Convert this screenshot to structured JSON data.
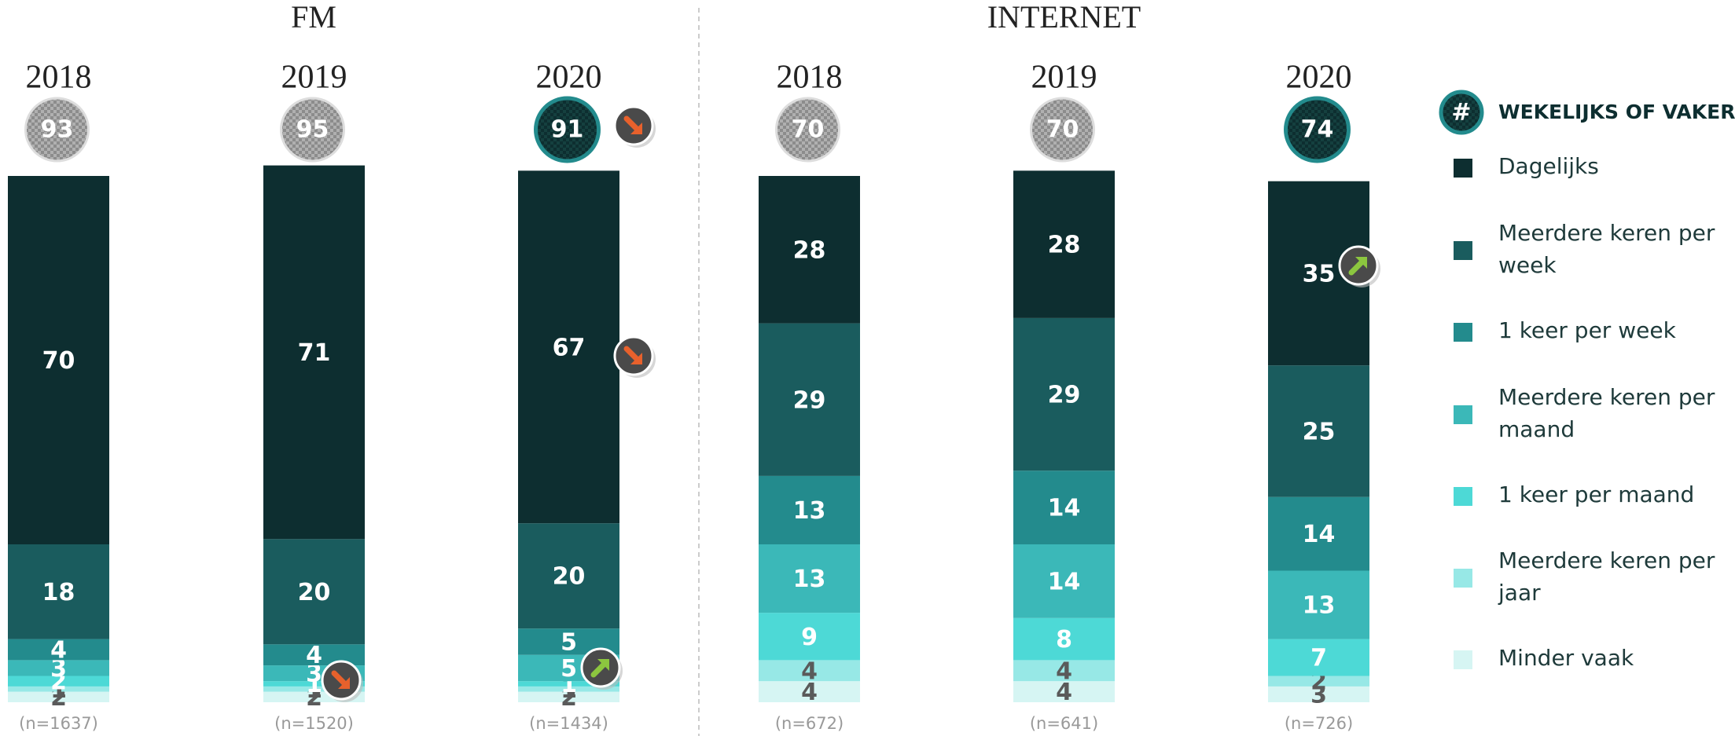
{
  "chart_data": {
    "type": "bar",
    "stacked": true,
    "groups": [
      "FM",
      "INTERNET"
    ],
    "categories": [
      "2018",
      "2019",
      "2020",
      "2018",
      "2019",
      "2020"
    ],
    "badge_symbol": "#",
    "badge_title": "WEKELIJKS OF VAKER",
    "badge_values": [
      93,
      95,
      91,
      70,
      70,
      74
    ],
    "sample_sizes": [
      "(n=1637)",
      "(n=1520)",
      "(n=1434)",
      "(n=672)",
      "(n=641)",
      "(n=726)"
    ],
    "ylim": [
      0,
      100
    ],
    "series": [
      {
        "name": "Dagelijks",
        "color": "#0d2e30",
        "values": [
          70,
          71,
          67,
          28,
          28,
          35
        ]
      },
      {
        "name": "Meerdere keren per week",
        "color": "#1a5c5e",
        "values": [
          18,
          20,
          20,
          29,
          29,
          25
        ]
      },
      {
        "name": "1 keer per week",
        "color": "#238b8d",
        "values": [
          4,
          4,
          5,
          13,
          14,
          14
        ]
      },
      {
        "name": "Meerdere keren per maand",
        "color": "#3bb8b8",
        "values": [
          3,
          3,
          5,
          13,
          14,
          13
        ]
      },
      {
        "name": "1 keer per maand",
        "color": "#4dd9d6",
        "values": [
          2,
          1,
          1,
          9,
          8,
          7
        ]
      },
      {
        "name": "Meerdere keren per jaar",
        "color": "#97e8e6",
        "values": [
          1,
          1,
          1,
          4,
          4,
          2
        ]
      },
      {
        "name": "Minder vaak",
        "color": "#d6f5f3",
        "values": [
          2,
          2,
          2,
          4,
          4,
          3
        ]
      }
    ]
  }
}
